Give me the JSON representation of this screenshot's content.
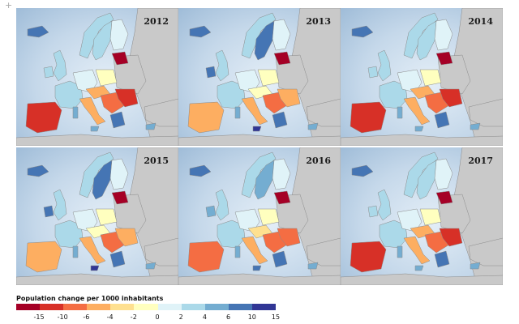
{
  "corner_mark": "+",
  "panels": [
    {
      "year": "2012"
    },
    {
      "year": "2013"
    },
    {
      "year": "2014"
    },
    {
      "year": "2015"
    },
    {
      "year": "2016"
    },
    {
      "year": "2017"
    }
  ],
  "legend": {
    "title": "Population change per 1000 inhabitants",
    "ticks": [
      "-15",
      "-10",
      "-6",
      "-4",
      "-2",
      "0",
      "2",
      "4",
      "6",
      "10",
      "15"
    ],
    "colors": [
      "#a50026",
      "#d73027",
      "#f46d43",
      "#fdae61",
      "#fee090",
      "#ffffbf",
      "#e0f3f8",
      "#abd9e9",
      "#74add1",
      "#4575b4",
      "#313695"
    ]
  },
  "map_colors": {
    "sea": "#c5d8ea",
    "non_eu_land": "#c9c9c9",
    "border": "#8a8a8a"
  }
}
